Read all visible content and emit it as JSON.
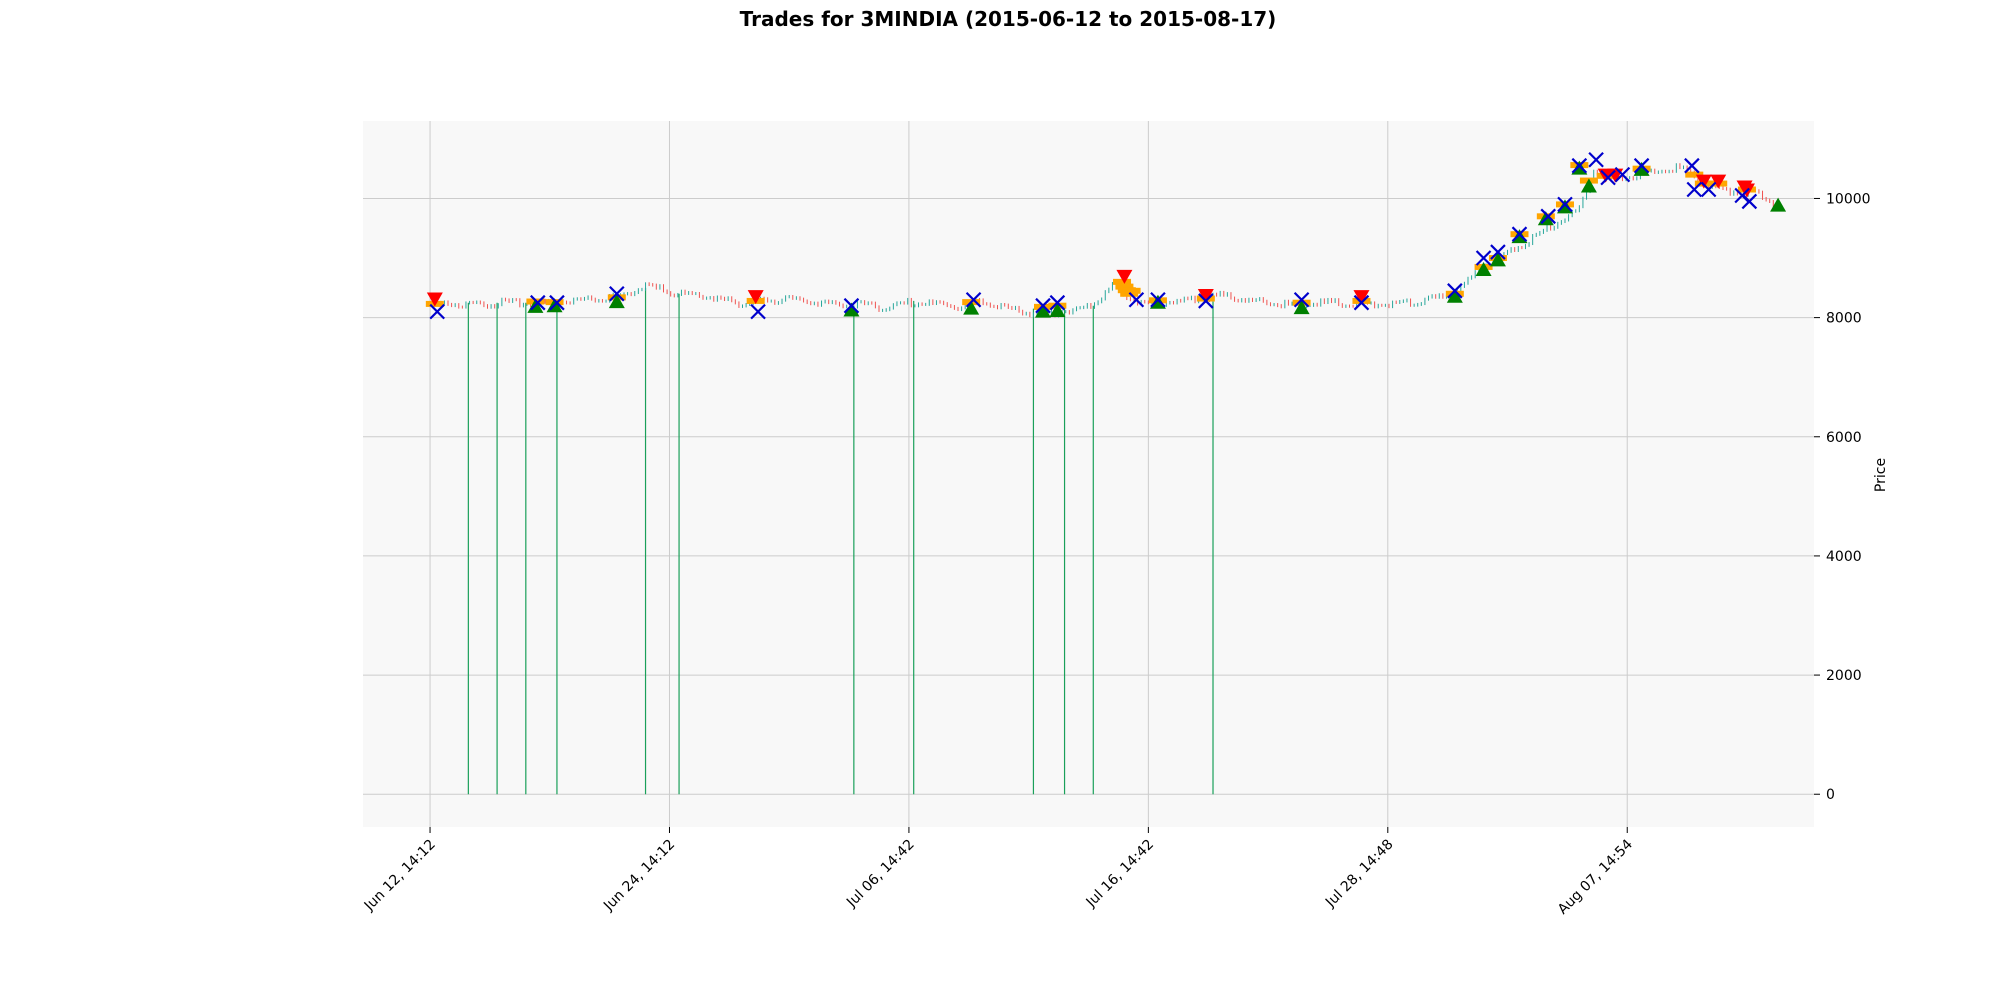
{
  "chart_data": {
    "type": "candlestick",
    "title": "Trades for 3MINDIA (2015-06-12 to 2015-08-17)",
    "ylabel": "Price",
    "xlabel": "",
    "ylim": [
      -550,
      11300
    ],
    "yticks": [
      0,
      2000,
      4000,
      6000,
      8000,
      10000
    ],
    "xticks": [
      {
        "label": "Jun 12, 14:12",
        "t": 0
      },
      {
        "label": "Jun 24, 14:12",
        "t": 100
      },
      {
        "label": "Jul 06, 14:42",
        "t": 200
      },
      {
        "label": "Jul 16, 14:42",
        "t": 300
      },
      {
        "label": "Jul 28, 14:48",
        "t": 400
      },
      {
        "label": "Aug 07, 14:54",
        "t": 500
      }
    ],
    "xlim": [
      -28,
      578
    ],
    "grid": true,
    "background": "#f8f8f8",
    "colors": {
      "up": "#26a69a",
      "down": "#ef5350",
      "volume": "#1aa05a",
      "buy": "#008000",
      "sell": "#ff0000",
      "exit": "#0000cc",
      "entry": "#ffa500"
    },
    "price_path": [
      [
        0,
        8250
      ],
      [
        10,
        8260
      ],
      [
        20,
        8240
      ],
      [
        30,
        8280
      ],
      [
        45,
        8260
      ],
      [
        55,
        8320
      ],
      [
        70,
        8350
      ],
      [
        80,
        8380
      ],
      [
        88,
        8560
      ],
      [
        95,
        8520
      ],
      [
        105,
        8420
      ],
      [
        120,
        8360
      ],
      [
        130,
        8250
      ],
      [
        140,
        8320
      ],
      [
        150,
        8330
      ],
      [
        160,
        8300
      ],
      [
        170,
        8260
      ],
      [
        180,
        8240
      ],
      [
        190,
        8200
      ],
      [
        200,
        8280
      ],
      [
        210,
        8250
      ],
      [
        220,
        8220
      ],
      [
        230,
        8300
      ],
      [
        240,
        8200
      ],
      [
        250,
        8120
      ],
      [
        258,
        8100
      ],
      [
        265,
        8140
      ],
      [
        275,
        8200
      ],
      [
        285,
        8550
      ],
      [
        292,
        8350
      ],
      [
        300,
        8270
      ],
      [
        315,
        8300
      ],
      [
        330,
        8400
      ],
      [
        345,
        8300
      ],
      [
        360,
        8250
      ],
      [
        375,
        8280
      ],
      [
        390,
        8270
      ],
      [
        400,
        8250
      ],
      [
        410,
        8280
      ],
      [
        420,
        8350
      ],
      [
        428,
        8450
      ],
      [
        440,
        8900
      ],
      [
        450,
        9100
      ],
      [
        460,
        9350
      ],
      [
        470,
        9600
      ],
      [
        480,
        9850
      ],
      [
        486,
        10500
      ],
      [
        492,
        10350
      ],
      [
        500,
        10400
      ],
      [
        510,
        10450
      ],
      [
        520,
        10550
      ],
      [
        528,
        10450
      ],
      [
        535,
        10200
      ],
      [
        545,
        10150
      ],
      [
        555,
        10100
      ],
      [
        563,
        9900
      ]
    ],
    "volume_spikes": [
      [
        16,
        8250
      ],
      [
        28,
        8250
      ],
      [
        40,
        8250
      ],
      [
        53,
        8250
      ],
      [
        90,
        8500
      ],
      [
        104,
        8400
      ],
      [
        177,
        8200
      ],
      [
        202,
        8280
      ],
      [
        252,
        8150
      ],
      [
        265,
        8150
      ],
      [
        277,
        8200
      ],
      [
        327,
        8350
      ]
    ],
    "buy_markers": [
      [
        44,
        8180
      ],
      [
        52,
        8190
      ],
      [
        78,
        8260
      ],
      [
        176,
        8120
      ],
      [
        226,
        8150
      ],
      [
        256,
        8100
      ],
      [
        262,
        8110
      ],
      [
        304,
        8250
      ],
      [
        364,
        8160
      ],
      [
        428,
        8350
      ],
      [
        440,
        8800
      ],
      [
        446,
        8960
      ],
      [
        455,
        9350
      ],
      [
        466,
        9650
      ],
      [
        474,
        9850
      ],
      [
        480,
        10500
      ],
      [
        484,
        10200
      ],
      [
        506,
        10480
      ],
      [
        563,
        9880
      ]
    ],
    "sell_markers": [
      [
        2,
        8320
      ],
      [
        136,
        8360
      ],
      [
        290,
        8700
      ],
      [
        324,
        8380
      ],
      [
        389,
        8360
      ],
      [
        491,
        10400
      ],
      [
        495,
        10400
      ],
      [
        532,
        10300
      ],
      [
        538,
        10300
      ],
      [
        549,
        10200
      ],
      [
        550,
        10150
      ]
    ],
    "exit_markers": [
      [
        3,
        8100
      ],
      [
        45,
        8250
      ],
      [
        53,
        8250
      ],
      [
        78,
        8400
      ],
      [
        137,
        8100
      ],
      [
        176,
        8200
      ],
      [
        227,
        8300
      ],
      [
        256,
        8200
      ],
      [
        262,
        8250
      ],
      [
        295,
        8300
      ],
      [
        304,
        8300
      ],
      [
        324,
        8280
      ],
      [
        364,
        8300
      ],
      [
        389,
        8250
      ],
      [
        428,
        8450
      ],
      [
        440,
        9000
      ],
      [
        446,
        9100
      ],
      [
        455,
        9400
      ],
      [
        467,
        9700
      ],
      [
        474,
        9900
      ],
      [
        480,
        10550
      ],
      [
        487,
        10650
      ],
      [
        492,
        10350
      ],
      [
        498,
        10400
      ],
      [
        506,
        10550
      ],
      [
        527,
        10550
      ],
      [
        528,
        10150
      ],
      [
        534,
        10150
      ],
      [
        548,
        10050
      ],
      [
        551,
        9950
      ]
    ],
    "entry_markers": [
      [
        2,
        8230
      ],
      [
        44,
        8270
      ],
      [
        52,
        8260
      ],
      [
        78,
        8340
      ],
      [
        136,
        8280
      ],
      [
        226,
        8260
      ],
      [
        256,
        8180
      ],
      [
        262,
        8200
      ],
      [
        289,
        8600
      ],
      [
        290,
        8520
      ],
      [
        291,
        8460
      ],
      [
        292,
        8400
      ],
      [
        293,
        8450
      ],
      [
        304,
        8290
      ],
      [
        324,
        8320
      ],
      [
        364,
        8250
      ],
      [
        389,
        8280
      ],
      [
        428,
        8400
      ],
      [
        440,
        8850
      ],
      [
        446,
        9000
      ],
      [
        455,
        9400
      ],
      [
        466,
        9700
      ],
      [
        474,
        9900
      ],
      [
        480,
        10560
      ],
      [
        484,
        10300
      ],
      [
        491,
        10380
      ],
      [
        506,
        10500
      ],
      [
        528,
        10400
      ],
      [
        532,
        10250
      ],
      [
        538,
        10250
      ],
      [
        550,
        10150
      ]
    ]
  }
}
